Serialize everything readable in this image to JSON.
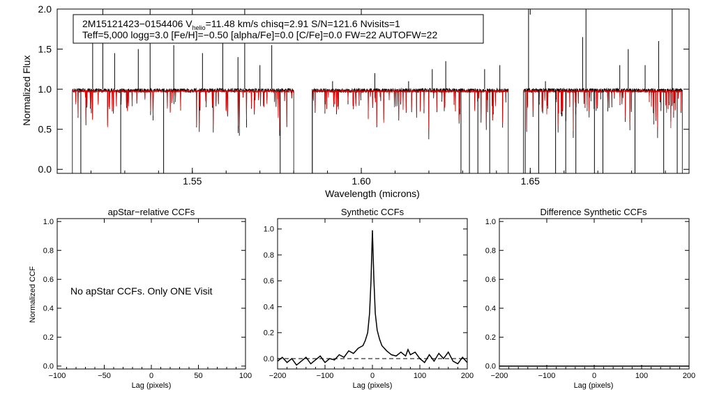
{
  "chart_data": [
    {
      "type": "line",
      "name": "spectrum",
      "title": "",
      "xlabel": "Wavelength (microns)",
      "ylabel": "Normalized Flux",
      "xlim": [
        1.51,
        1.697
      ],
      "ylim": [
        -0.05,
        2.0
      ],
      "xticks": [
        {
          "value": 1.55,
          "label": "1.55"
        },
        {
          "value": 1.6,
          "label": "1.60"
        },
        {
          "value": 1.65,
          "label": "1.65"
        }
      ],
      "yticks": [
        {
          "value": 0.0,
          "label": "0.0"
        },
        {
          "value": 0.5,
          "label": "0.5"
        },
        {
          "value": 1.0,
          "label": "1.0"
        },
        {
          "value": 1.5,
          "label": "1.5"
        },
        {
          "value": 2.0,
          "label": "2.0"
        }
      ],
      "chips": [
        [
          1.5145,
          1.58
        ],
        [
          1.5855,
          1.6435
        ],
        [
          1.648,
          1.695
        ]
      ],
      "series": [
        {
          "name": "observed",
          "color": "#000000"
        },
        {
          "name": "synthetic",
          "color": "#e00000"
        }
      ],
      "strong_lines_observed": [
        {
          "x": 1.517,
          "y": -0.05
        },
        {
          "x": 1.5205,
          "y": 1.7
        },
        {
          "x": 1.5235,
          "y": 2.0
        },
        {
          "x": 1.527,
          "y": 1.45
        },
        {
          "x": 1.5288,
          "y": -0.05
        },
        {
          "x": 1.534,
          "y": 1.5
        },
        {
          "x": 1.5375,
          "y": 2.0
        },
        {
          "x": 1.5415,
          "y": -0.05
        },
        {
          "x": 1.5445,
          "y": 1.55
        },
        {
          "x": 1.553,
          "y": 1.45
        },
        {
          "x": 1.559,
          "y": 1.6
        },
        {
          "x": 1.5635,
          "y": 1.4
        },
        {
          "x": 1.5655,
          "y": 2.0
        },
        {
          "x": 1.57,
          "y": 1.3
        },
        {
          "x": 1.5735,
          "y": 1.55
        },
        {
          "x": 1.576,
          "y": -0.05
        },
        {
          "x": 1.5855,
          "y": -0.05
        },
        {
          "x": 1.5915,
          "y": 1.1
        },
        {
          "x": 1.604,
          "y": 1.2
        },
        {
          "x": 1.614,
          "y": 1.1
        },
        {
          "x": 1.621,
          "y": 1.25
        },
        {
          "x": 1.625,
          "y": 1.35
        },
        {
          "x": 1.6295,
          "y": -0.05
        },
        {
          "x": 1.632,
          "y": -0.05
        },
        {
          "x": 1.6345,
          "y": -0.05
        },
        {
          "x": 1.6365,
          "y": 1.25
        },
        {
          "x": 1.638,
          "y": -0.05
        },
        {
          "x": 1.641,
          "y": 1.3
        },
        {
          "x": 1.6485,
          "y": -0.05
        },
        {
          "x": 1.6495,
          "y": 2.0
        },
        {
          "x": 1.6525,
          "y": -0.05
        },
        {
          "x": 1.6545,
          "y": 1.1
        },
        {
          "x": 1.6575,
          "y": -0.05
        },
        {
          "x": 1.6605,
          "y": -0.05
        },
        {
          "x": 1.6635,
          "y": -0.05
        },
        {
          "x": 1.6655,
          "y": 1.65
        },
        {
          "x": 1.6665,
          "y": 2.0
        },
        {
          "x": 1.669,
          "y": -0.05
        },
        {
          "x": 1.6715,
          "y": -0.05
        },
        {
          "x": 1.6765,
          "y": 1.3
        },
        {
          "x": 1.679,
          "y": 1.5
        },
        {
          "x": 1.681,
          "y": -0.05
        },
        {
          "x": 1.684,
          "y": 1.3
        },
        {
          "x": 1.688,
          "y": 1.6
        },
        {
          "x": 1.6895,
          "y": -0.05
        },
        {
          "x": 1.692,
          "y": 2.0
        },
        {
          "x": 1.6935,
          "y": -0.05
        }
      ],
      "annotation": {
        "line1_prefix": "2M15121423−0154406  V",
        "line1_sub": "helio",
        "line1_suffix": "=11.48 km/s  chisq=2.91  S/N=121.6  Nvisits=1",
        "line2": "Teff=5,000 logg=3.0 [Fe/H]=−0.50 [alpha/Fe]=0.0 [C/Fe]=0.0 FW=22 AUTOFW=22"
      }
    },
    {
      "type": "line",
      "name": "apstar-ccf",
      "title": "apStar−relative CCFs",
      "xlabel": "Lag (pixels)",
      "ylabel": "Normalized CCF",
      "xlim": [
        -100,
        100
      ],
      "ylim": [
        -0.02,
        1.02
      ],
      "xticks": [
        {
          "value": -100,
          "label": "−100"
        },
        {
          "value": -50,
          "label": "−50"
        },
        {
          "value": 0,
          "label": "0"
        },
        {
          "value": 50,
          "label": "50"
        },
        {
          "value": 100,
          "label": "100"
        }
      ],
      "yticks": [
        {
          "value": 0.0,
          "label": "0.0"
        },
        {
          "value": 0.2,
          "label": "0.2"
        },
        {
          "value": 0.4,
          "label": "0.4"
        },
        {
          "value": 0.6,
          "label": "0.6"
        },
        {
          "value": 0.8,
          "label": "0.8"
        },
        {
          "value": 1.0,
          "label": "1.0"
        }
      ],
      "message": "No apStar CCFs.  Only ONE Visit",
      "series": []
    },
    {
      "type": "line",
      "name": "synthetic-ccf",
      "title": "Synthetic CCFs",
      "xlabel": "Lag (pixels)",
      "ylabel": "",
      "xlim": [
        -200,
        200
      ],
      "ylim": [
        -0.08,
        1.08
      ],
      "xticks": [
        {
          "value": -200,
          "label": "−200"
        },
        {
          "value": -100,
          "label": "−100"
        },
        {
          "value": 0,
          "label": "0"
        },
        {
          "value": 100,
          "label": "100"
        },
        {
          "value": 200,
          "label": "200"
        }
      ],
      "yticks": [
        {
          "value": 0.0,
          "label": "0.0"
        },
        {
          "value": 0.2,
          "label": "0.2"
        },
        {
          "value": 0.4,
          "label": "0.4"
        },
        {
          "value": 0.6,
          "label": "0.6"
        },
        {
          "value": 0.8,
          "label": "0.8"
        },
        {
          "value": 1.0,
          "label": "1.0"
        }
      ],
      "reference_line": 0.0,
      "series": [
        {
          "name": "ccf",
          "color": "#000000",
          "x": [
            -200,
            -190,
            -180,
            -170,
            -160,
            -150,
            -140,
            -130,
            -120,
            -110,
            -100,
            -90,
            -80,
            -70,
            -60,
            -50,
            -40,
            -30,
            -20,
            -15,
            -10,
            -6,
            -3,
            0,
            3,
            6,
            10,
            15,
            20,
            30,
            40,
            50,
            60,
            70,
            75,
            80,
            90,
            100,
            110,
            120,
            130,
            140,
            150,
            160,
            170,
            180,
            190,
            200
          ],
          "y": [
            -0.02,
            0.01,
            -0.03,
            0.0,
            -0.05,
            -0.02,
            0.01,
            -0.04,
            -0.01,
            0.02,
            -0.03,
            0.0,
            -0.01,
            0.03,
            0.01,
            0.06,
            0.04,
            0.08,
            0.1,
            0.14,
            0.2,
            0.35,
            0.6,
            0.99,
            0.62,
            0.35,
            0.22,
            0.15,
            0.1,
            0.06,
            0.03,
            0.02,
            0.05,
            0.02,
            0.07,
            0.03,
            0.05,
            0.0,
            -0.03,
            0.03,
            -0.02,
            0.04,
            0.0,
            0.05,
            -0.02,
            -0.04,
            0.01,
            -0.03
          ]
        }
      ]
    },
    {
      "type": "line",
      "name": "difference-ccf",
      "title": "Difference Synthetic CCFs",
      "xlabel": "Lag (pixels)",
      "ylabel": "",
      "xlim": [
        -200,
        200
      ],
      "ylim": [
        -0.02,
        1.02
      ],
      "xticks": [
        {
          "value": -200,
          "label": "−200"
        },
        {
          "value": -100,
          "label": "−100"
        },
        {
          "value": 0,
          "label": "0"
        },
        {
          "value": 100,
          "label": "100"
        },
        {
          "value": 200,
          "label": "200"
        }
      ],
      "yticks": [
        {
          "value": 0.0,
          "label": "0.0"
        },
        {
          "value": 0.2,
          "label": "0.2"
        },
        {
          "value": 0.4,
          "label": "0.4"
        },
        {
          "value": 0.6,
          "label": "0.6"
        },
        {
          "value": 0.8,
          "label": "0.8"
        },
        {
          "value": 1.0,
          "label": "1.0"
        }
      ],
      "series": [
        {
          "name": "difference",
          "color": "#000000",
          "x": [
            -200,
            200
          ],
          "y": [
            0.0,
            0.0
          ]
        }
      ]
    }
  ]
}
